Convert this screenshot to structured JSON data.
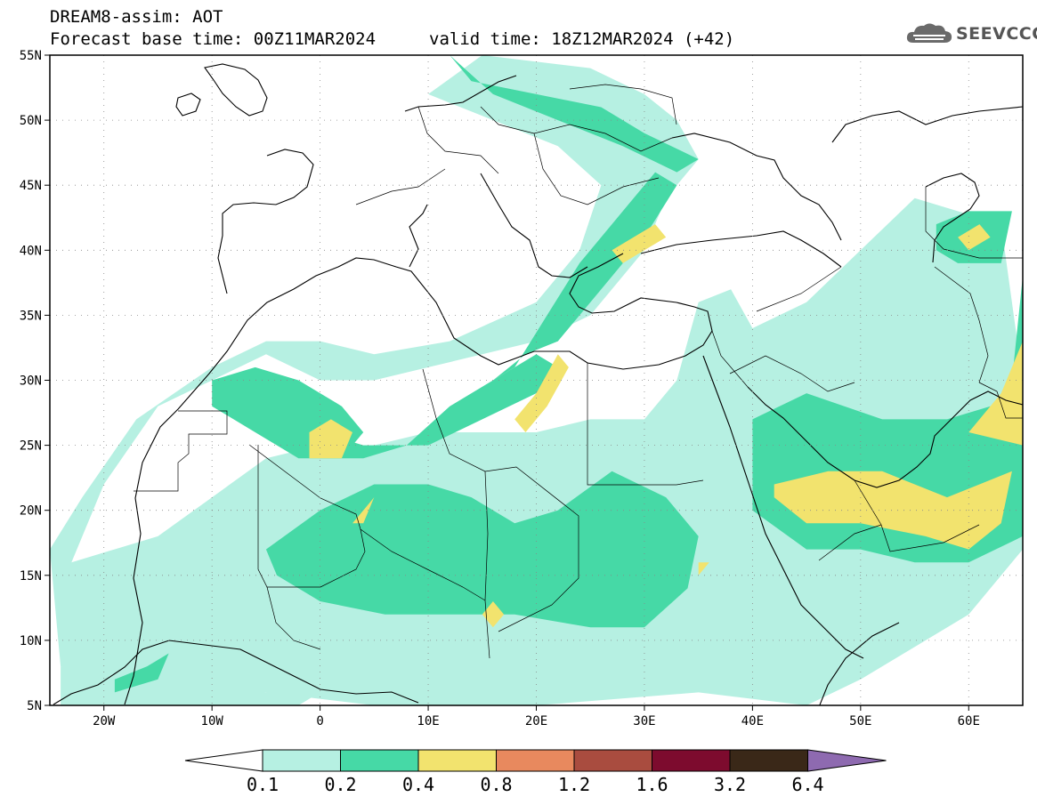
{
  "header": {
    "line1": "DREAM8-assim: AOT",
    "line2": "Forecast base time: 00Z11MAR2024",
    "valid": "valid time: 18Z12MAR2024 (+42)"
  },
  "logo": {
    "text": "SEEVCCC",
    "icon": "cloud-icon",
    "color": "#555555"
  },
  "map": {
    "projection": "lat-lon",
    "lon_range": [
      -25,
      65
    ],
    "lat_range": [
      5,
      55
    ],
    "grid": true,
    "lon_ticks": [
      {
        "value": -20,
        "label": "20W"
      },
      {
        "value": -10,
        "label": "10W"
      },
      {
        "value": 0,
        "label": "0"
      },
      {
        "value": 10,
        "label": "10E"
      },
      {
        "value": 20,
        "label": "20E"
      },
      {
        "value": 30,
        "label": "30E"
      },
      {
        "value": 40,
        "label": "40E"
      },
      {
        "value": 50,
        "label": "50E"
      },
      {
        "value": 60,
        "label": "60E"
      }
    ],
    "lat_ticks": [
      {
        "value": 55,
        "label": "55N"
      },
      {
        "value": 50,
        "label": "50N"
      },
      {
        "value": 45,
        "label": "45N"
      },
      {
        "value": 40,
        "label": "40N"
      },
      {
        "value": 35,
        "label": "35N"
      },
      {
        "value": 30,
        "label": "30N"
      },
      {
        "value": 25,
        "label": "25N"
      },
      {
        "value": 20,
        "label": "20N"
      },
      {
        "value": 15,
        "label": "15N"
      },
      {
        "value": 10,
        "label": "10N"
      },
      {
        "value": 5,
        "label": "5N"
      }
    ]
  },
  "colorbar": {
    "levels": [
      "0.1",
      "0.2",
      "0.4",
      "0.8",
      "1.2",
      "1.6",
      "3.2",
      "6.4"
    ],
    "colors": [
      "#b6f0e2",
      "#46d9a6",
      "#f2e36e",
      "#e8895e",
      "#a94c3f",
      "#7d0b2e",
      "#3a2818",
      "#8e6ab0"
    ],
    "under_color": "#ffffff",
    "over_color": "#8e6ab0"
  },
  "chart_data": {
    "type": "heatmap",
    "title": "DREAM8-assim: AOT",
    "xlabel": "",
    "ylabel": "",
    "xlim": [
      -25,
      65
    ],
    "ylim": [
      5,
      55
    ],
    "regions": [
      {
        "level": "0.1-0.2",
        "polygon": [
          [
            -23,
            16
          ],
          [
            -20,
            22
          ],
          [
            -15,
            28
          ],
          [
            -10,
            30
          ],
          [
            -5,
            32
          ],
          [
            0,
            30
          ],
          [
            5,
            30
          ],
          [
            10,
            31
          ],
          [
            15,
            32
          ],
          [
            20,
            33
          ],
          [
            25,
            35
          ],
          [
            30,
            40
          ],
          [
            32,
            44
          ],
          [
            35,
            47
          ],
          [
            33,
            50
          ],
          [
            30,
            52
          ],
          [
            25,
            54
          ],
          [
            15,
            55
          ],
          [
            10,
            52
          ],
          [
            16,
            50
          ],
          [
            22,
            48
          ],
          [
            26,
            45
          ],
          [
            24,
            40
          ],
          [
            20,
            36
          ],
          [
            12,
            33
          ],
          [
            5,
            32
          ],
          [
            0,
            33
          ],
          [
            -5,
            33
          ],
          [
            -10,
            31
          ],
          [
            -17,
            27
          ],
          [
            -22,
            21
          ],
          [
            -25,
            17
          ],
          [
            -24,
            8
          ],
          [
            -15,
            7
          ],
          [
            -5,
            6
          ],
          [
            5,
            5
          ],
          [
            20,
            5
          ],
          [
            35,
            6
          ],
          [
            45,
            5
          ],
          [
            50,
            7
          ],
          [
            60,
            12
          ],
          [
            65,
            17
          ],
          [
            65,
            30
          ],
          [
            63,
            42
          ],
          [
            55,
            44
          ],
          [
            50,
            40
          ],
          [
            45,
            36
          ],
          [
            40,
            34
          ],
          [
            38,
            37
          ],
          [
            35,
            36
          ],
          [
            33,
            30
          ],
          [
            30,
            27
          ],
          [
            25,
            27
          ],
          [
            20,
            26
          ],
          [
            10,
            26
          ],
          [
            5,
            25
          ],
          [
            0,
            25
          ],
          [
            -5,
            24
          ],
          [
            -10,
            21
          ],
          [
            -15,
            18
          ],
          [
            -23,
            16
          ]
        ]
      },
      {
        "level": "0.1-0.2",
        "polygon": [
          [
            -24,
            8
          ],
          [
            -20,
            8
          ],
          [
            -10,
            7
          ],
          [
            -5,
            6
          ],
          [
            0,
            6
          ],
          [
            -2,
            5
          ],
          [
            -24,
            5
          ]
        ]
      },
      {
        "level": "0.2-0.4",
        "polygon": [
          [
            -8,
            28
          ],
          [
            -5,
            27
          ],
          [
            0,
            26
          ],
          [
            4,
            25
          ],
          [
            10,
            25
          ],
          [
            15,
            27
          ],
          [
            20,
            29
          ],
          [
            22,
            31
          ],
          [
            20,
            32
          ],
          [
            16,
            30
          ],
          [
            12,
            28
          ],
          [
            8,
            25
          ],
          [
            4,
            24
          ],
          [
            0,
            24
          ],
          [
            -4,
            26
          ],
          [
            -8,
            28
          ]
        ]
      },
      {
        "level": "0.2-0.4",
        "polygon": [
          [
            -10,
            30
          ],
          [
            -6,
            31
          ],
          [
            -2,
            30
          ],
          [
            2,
            28
          ],
          [
            4,
            26
          ],
          [
            2,
            24
          ],
          [
            -2,
            24
          ],
          [
            -6,
            26
          ],
          [
            -10,
            28
          ]
        ]
      },
      {
        "level": "0.2-0.4",
        "polygon": [
          [
            -5,
            17
          ],
          [
            0,
            20
          ],
          [
            5,
            22
          ],
          [
            10,
            22
          ],
          [
            14,
            21
          ],
          [
            18,
            19
          ],
          [
            22,
            20
          ],
          [
            27,
            23
          ],
          [
            32,
            21
          ],
          [
            35,
            18
          ],
          [
            34,
            14
          ],
          [
            30,
            11
          ],
          [
            25,
            11
          ],
          [
            18,
            12
          ],
          [
            12,
            12
          ],
          [
            6,
            12
          ],
          [
            0,
            13
          ],
          [
            -4,
            15
          ]
        ]
      },
      {
        "level": "0.2-0.4",
        "polygon": [
          [
            16,
            30
          ],
          [
            19,
            32
          ],
          [
            22,
            33
          ],
          [
            26,
            37
          ],
          [
            30,
            41
          ],
          [
            33,
            45
          ],
          [
            31,
            46
          ],
          [
            28,
            43
          ],
          [
            24,
            39
          ],
          [
            21,
            35
          ],
          [
            18,
            31
          ]
        ]
      },
      {
        "level": "0.2-0.4",
        "polygon": [
          [
            12,
            55
          ],
          [
            14,
            53
          ],
          [
            20,
            52
          ],
          [
            26,
            51
          ],
          [
            30,
            49
          ],
          [
            35,
            47
          ],
          [
            33,
            46
          ],
          [
            28,
            48
          ],
          [
            22,
            50
          ],
          [
            16,
            52
          ],
          [
            12,
            55
          ]
        ]
      },
      {
        "level": "0.2-0.4",
        "polygon": [
          [
            40,
            27
          ],
          [
            45,
            29
          ],
          [
            52,
            27
          ],
          [
            58,
            27
          ],
          [
            62,
            28
          ],
          [
            65,
            25
          ],
          [
            65,
            18
          ],
          [
            60,
            16
          ],
          [
            55,
            16
          ],
          [
            50,
            17
          ],
          [
            45,
            17
          ],
          [
            40,
            20
          ],
          [
            40,
            24
          ]
        ]
      },
      {
        "level": "0.2-0.4",
        "polygon": [
          [
            57,
            42
          ],
          [
            60,
            43
          ],
          [
            64,
            43
          ],
          [
            63,
            39
          ],
          [
            59,
            39
          ],
          [
            57,
            40
          ]
        ]
      },
      {
        "level": "0.2-0.4",
        "polygon": [
          [
            64,
            30
          ],
          [
            65,
            38
          ],
          [
            65,
            25
          ]
        ]
      },
      {
        "level": "0.2-0.4",
        "polygon": [
          [
            -19,
            7
          ],
          [
            -16,
            8
          ],
          [
            -14,
            9
          ],
          [
            -15,
            7
          ],
          [
            -19,
            6
          ]
        ]
      },
      {
        "level": "0.4-0.8",
        "polygon": [
          [
            -1,
            26
          ],
          [
            1,
            27
          ],
          [
            3,
            26
          ],
          [
            2,
            24
          ],
          [
            -1,
            24
          ]
        ]
      },
      {
        "level": "0.4-0.8",
        "polygon": [
          [
            18,
            27
          ],
          [
            20,
            29
          ],
          [
            22,
            32
          ],
          [
            23,
            31
          ],
          [
            21,
            28
          ],
          [
            19,
            26
          ]
        ]
      },
      {
        "level": "0.4-0.8",
        "polygon": [
          [
            27,
            40
          ],
          [
            31,
            42
          ],
          [
            32,
            41
          ],
          [
            28,
            39
          ]
        ]
      },
      {
        "level": "0.4-0.8",
        "polygon": [
          [
            42,
            22
          ],
          [
            47,
            23
          ],
          [
            52,
            23
          ],
          [
            55,
            22
          ],
          [
            58,
            21
          ],
          [
            61,
            22
          ],
          [
            64,
            23
          ],
          [
            63,
            19
          ],
          [
            60,
            17
          ],
          [
            56,
            18
          ],
          [
            50,
            19
          ],
          [
            45,
            19
          ],
          [
            42,
            21
          ]
        ]
      },
      {
        "level": "0.4-0.8",
        "polygon": [
          [
            60,
            26
          ],
          [
            63,
            29
          ],
          [
            65,
            33
          ],
          [
            65,
            25
          ]
        ]
      },
      {
        "level": "0.4-0.8",
        "polygon": [
          [
            59,
            41
          ],
          [
            61,
            42
          ],
          [
            62,
            41
          ],
          [
            60,
            40
          ]
        ]
      },
      {
        "level": "0.4-0.8",
        "polygon": [
          [
            3,
            19
          ],
          [
            4,
            20
          ],
          [
            5,
            21
          ],
          [
            4,
            19
          ]
        ]
      },
      {
        "level": "0.4-0.8",
        "polygon": [
          [
            15,
            12
          ],
          [
            16,
            13
          ],
          [
            17,
            12
          ],
          [
            16,
            11
          ]
        ]
      },
      {
        "level": "0.4-0.8",
        "polygon": [
          [
            35,
            16
          ],
          [
            36,
            16
          ],
          [
            35,
            15
          ]
        ]
      }
    ]
  }
}
